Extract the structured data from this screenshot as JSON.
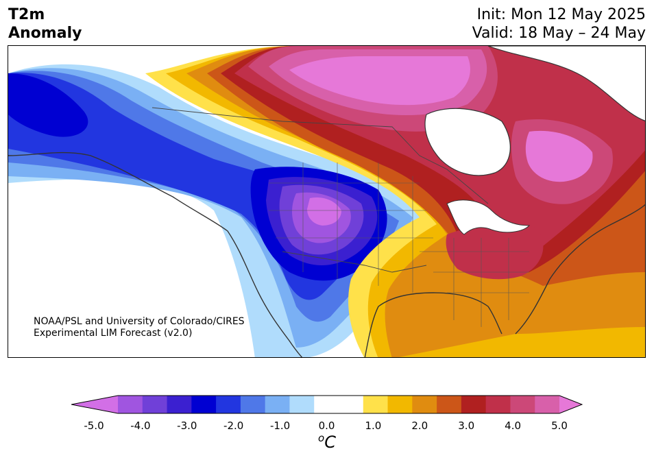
{
  "title": {
    "left_line1": "T2m",
    "left_line2": "Anomaly",
    "init": "Init: Mon 12 May 2025",
    "valid": "Valid: 18 May – 24 May"
  },
  "credit": {
    "line1": "NOAA/PSL and University of Colorado/CIRES",
    "line2": "Experimental LIM Forecast (v2.0)"
  },
  "colorbar": {
    "colors": [
      "#d26fe6",
      "#a055e0",
      "#7040d8",
      "#3b20d0",
      "#0000d2",
      "#2236e0",
      "#4f78e8",
      "#7ab0f4",
      "#b0dcfc",
      "#ffffff",
      "#ffffff",
      "#ffe14a",
      "#f2b800",
      "#e08c10",
      "#cc5618",
      "#b02020",
      "#c0304a",
      "#cc4878",
      "#d860aa",
      "#e678d8"
    ],
    "ticks": [
      "-5.0",
      "-4.0",
      "-3.0",
      "-2.0",
      "-1.0",
      "0.0",
      "1.0",
      "2.0",
      "3.0",
      "4.0",
      "5.0"
    ],
    "unit_base": "o",
    "unit_letter": "C"
  }
}
